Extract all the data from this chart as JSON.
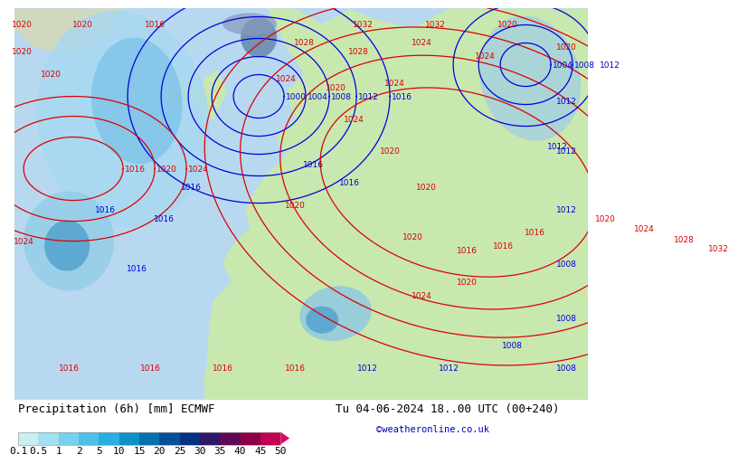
{
  "title_left": "Precipitation (6h) [mm] ECMWF",
  "title_right": "Tu 04-06-2024 18..00 UTC (00+240)",
  "credit": "©weatheronline.co.uk",
  "colorbar_tick_labels": [
    "0.1",
    "0.5",
    "1",
    "2",
    "5",
    "10",
    "15",
    "20",
    "25",
    "30",
    "35",
    "40",
    "45",
    "50"
  ],
  "colorbar_colors": [
    "#c8f0f0",
    "#a0e0f0",
    "#78d0f0",
    "#50c0e8",
    "#28b0e0",
    "#1090c8",
    "#0870b0",
    "#065098",
    "#043080",
    "#301868",
    "#600858",
    "#900048",
    "#c00050",
    "#e80068"
  ],
  "colorbar_arrow_color": "#e80068",
  "bg_color": "#ffffff",
  "sea_color": "#b8d8f0",
  "land_color": "#c8e8b0",
  "precip_light": "#a0d8f0",
  "precip_mid": "#78c0e8",
  "precip_dark": "#3090c0",
  "label_fontsize": 9,
  "credit_color": "#0000bb",
  "colorbar_label_fontsize": 8,
  "isobar_red": "#dd0000",
  "isobar_blue": "#0000dd"
}
